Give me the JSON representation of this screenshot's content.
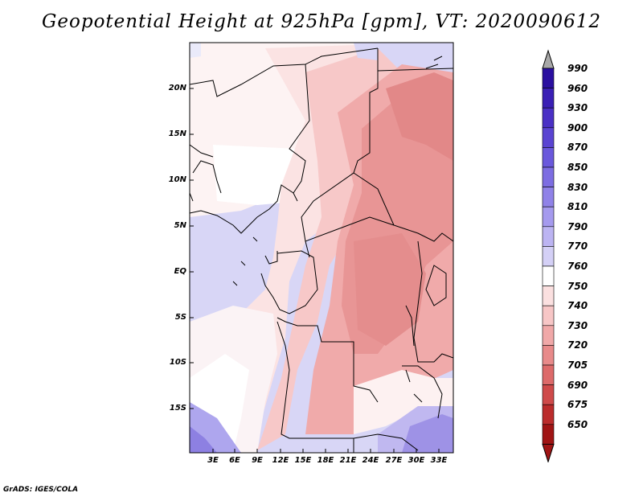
{
  "title": "Geopotential Height at 925hPa [gpm], VT: 2020090612",
  "credit": "GrADS: IGES/COLA",
  "lat_labels": [
    "20N",
    "15N",
    "10N",
    "5N",
    "EQ",
    "5S",
    "10S",
    "15S"
  ],
  "lon_labels": [
    "3E",
    "6E",
    "9E",
    "12E",
    "15E",
    "18E",
    "21E",
    "24E",
    "27E",
    "30E",
    "33E"
  ],
  "colorbar": {
    "labels": [
      "990",
      "960",
      "930",
      "900",
      "870",
      "850",
      "830",
      "810",
      "790",
      "770",
      "760",
      "750",
      "740",
      "730",
      "720",
      "705",
      "690",
      "675",
      "650"
    ],
    "colors": [
      "#2a0fa0",
      "#3a1fb5",
      "#4a30c5",
      "#5a44d2",
      "#6a58dc",
      "#7d6de2",
      "#9082e8",
      "#a59aee",
      "#bcb4f2",
      "#d4d0f6",
      "#ffffff",
      "#fbe0e0",
      "#f7c6c6",
      "#f0a8a8",
      "#e88a8a",
      "#dd6a6a",
      "#cf4a4a",
      "#bb2c2c",
      "#a01414"
    ],
    "upper_arrow_color": "#a8a8a8",
    "lower_arrow_color": "#a01414"
  },
  "map": {
    "region": "Central Africa",
    "variable": "Geopotential Height",
    "level": "925hPa",
    "units": "gpm"
  }
}
